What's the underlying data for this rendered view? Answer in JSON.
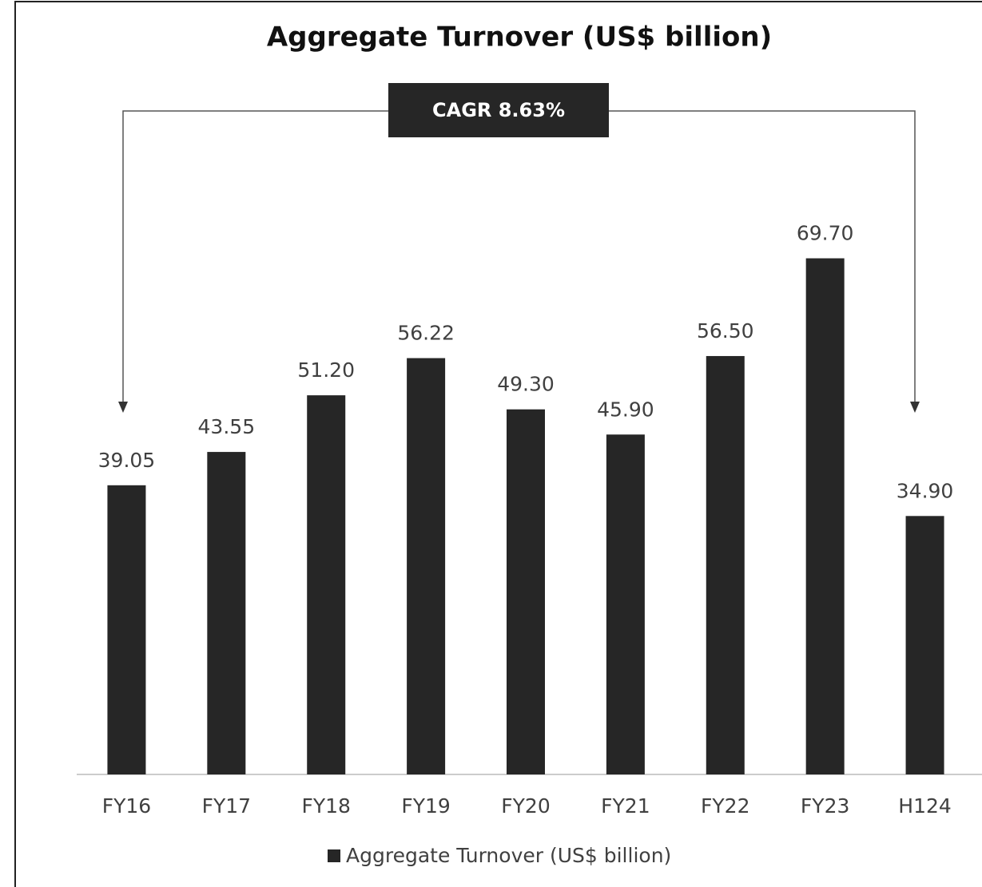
{
  "chart_data": {
    "type": "bar",
    "title": "Aggregate Turnover (US$ billion)",
    "annotation": "CAGR 8.63%",
    "categories": [
      "FY16",
      "FY17",
      "FY18",
      "FY19",
      "FY20",
      "FY21",
      "FY22",
      "FY23",
      "H124"
    ],
    "series": [
      {
        "name": "Aggregate Turnover (US$ billion)",
        "color": "#262626",
        "values": [
          39.05,
          43.55,
          51.2,
          56.22,
          49.3,
          45.9,
          56.5,
          69.7,
          34.9
        ],
        "value_labels": [
          "39.05",
          "43.55",
          "51.20",
          "56.22",
          "49.30",
          "45.90",
          "56.50",
          "69.70",
          "34.90"
        ]
      }
    ],
    "ylim": [
      0,
      80
    ],
    "legend": "bottom"
  }
}
